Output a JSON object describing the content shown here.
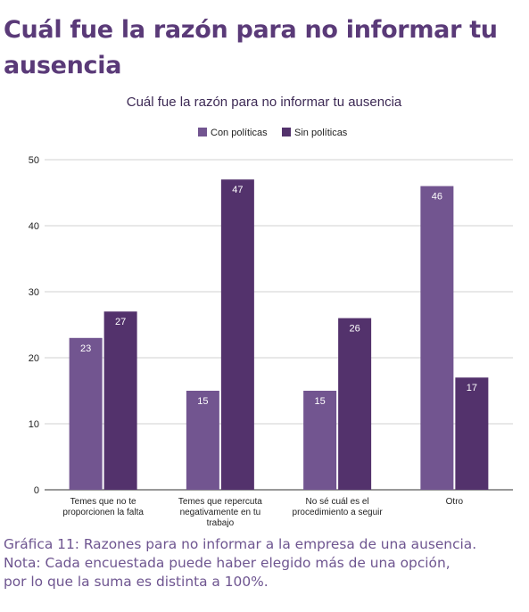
{
  "heading": [
    "Cuál fue la razón para no informar tu",
    "ausencia"
  ],
  "caption": [
    "Gráfica 11: Razones para no informar a la empresa de una ausencia.",
    "Nota: Cada encuestada puede haber elegido más de una opción,",
    "por lo que la suma es distinta a 100%."
  ],
  "colors": {
    "con": "#725590",
    "sin": "#53326c",
    "text": "#222222",
    "title": "#3d2a55",
    "grid": "#d0d0d0"
  },
  "chart_data": {
    "type": "bar",
    "title": "Cuál fue la razón para no informar tu ausencia",
    "legend_position": "top-center",
    "grid": true,
    "ylim": [
      0,
      50
    ],
    "yticks": [
      0,
      10,
      20,
      30,
      40,
      50
    ],
    "categories": [
      [
        "Temes que no te",
        "proporcionen la falta"
      ],
      [
        "Temes que repercuta",
        "negativamente en tu",
        "trabajo"
      ],
      [
        "No sé cuál es el",
        "procedimiento a seguir"
      ],
      [
        "Otro"
      ]
    ],
    "series": [
      {
        "name": "Con políticas",
        "values": [
          23,
          15,
          15,
          46
        ]
      },
      {
        "name": "Sin políticas",
        "values": [
          27,
          47,
          26,
          17
        ]
      }
    ]
  }
}
